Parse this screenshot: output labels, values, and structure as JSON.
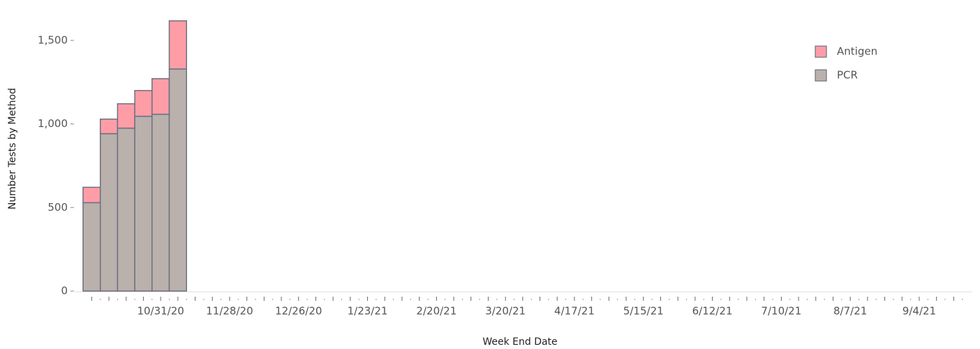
{
  "chart_data": {
    "type": "stacked_bar",
    "x_label": "Week End Date",
    "y_label": "Number Tests by Method",
    "categories": [
      null,
      null,
      null,
      null,
      "10/31/20",
      null,
      null,
      null,
      "11/28/20",
      null,
      null,
      null,
      "12/26/20",
      null,
      null,
      null,
      "1/23/21",
      null,
      null,
      null,
      "2/20/21",
      null,
      null,
      null,
      "3/20/21",
      null,
      null,
      null,
      "4/17/21",
      null,
      null,
      null,
      "5/15/21",
      null,
      null,
      null,
      "6/12/21",
      null,
      null,
      null,
      "7/10/21",
      null,
      null,
      null,
      "8/7/21",
      null,
      null,
      null,
      "9/4/21",
      null,
      null
    ],
    "series": [
      {
        "name": "PCR",
        "color": "#bab0ac",
        "values": [
          529,
          942,
          975,
          1046,
          1058,
          1329,
          null,
          null,
          null,
          null,
          null,
          null,
          null,
          null,
          null,
          null,
          null,
          null,
          null,
          null,
          null,
          null,
          null,
          null,
          null,
          null,
          null,
          null,
          null,
          null,
          null,
          null,
          null,
          null,
          null,
          null,
          null,
          null,
          null,
          null,
          null,
          null,
          null,
          null,
          null,
          null,
          null,
          null,
          null,
          null,
          null
        ]
      },
      {
        "name": "Antigen",
        "color": "#ff9da7",
        "values": [
          92,
          87,
          146,
          154,
          213,
          288,
          null,
          null,
          null,
          null,
          null,
          null,
          null,
          null,
          null,
          null,
          null,
          null,
          null,
          null,
          null,
          null,
          null,
          null,
          null,
          null,
          null,
          null,
          null,
          null,
          null,
          null,
          null,
          null,
          null,
          null,
          null,
          null,
          null,
          null,
          null,
          null,
          null,
          null,
          null,
          null,
          null,
          null,
          null,
          null,
          null
        ]
      }
    ],
    "ylim": [
      0,
      1700
    ],
    "yticks": [
      0,
      500,
      {
        "value": 1000,
        "label": "1,000"
      },
      {
        "value": 1500,
        "label": "1,500"
      }
    ],
    "legend": "top-right"
  }
}
